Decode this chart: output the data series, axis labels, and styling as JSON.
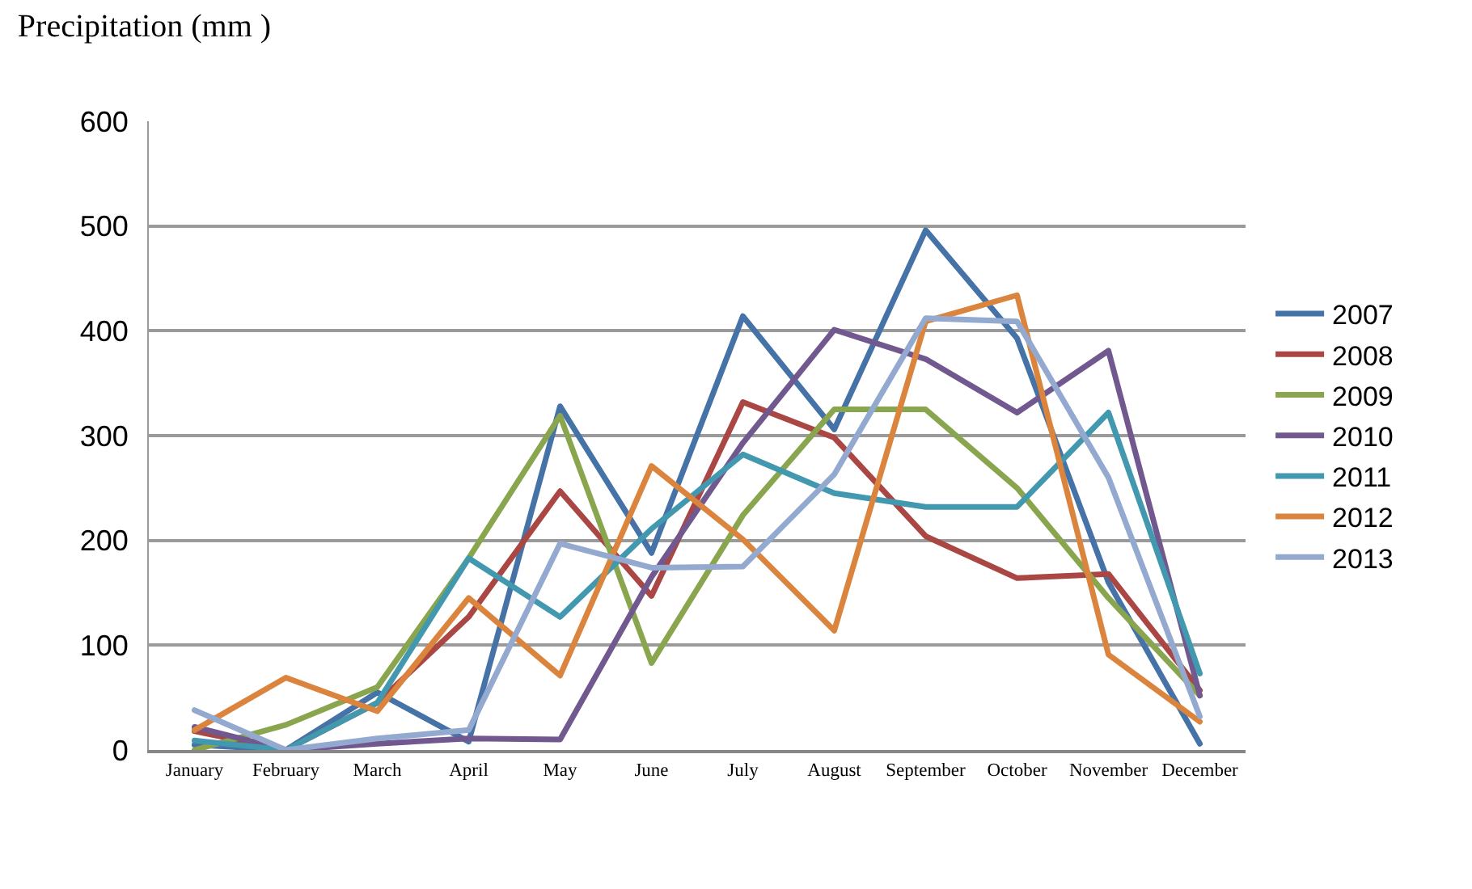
{
  "chart_data": {
    "type": "line",
    "title": "Precipitation (mm )",
    "categories": [
      "January",
      "February",
      "March",
      "April",
      "May",
      "June",
      "July",
      "August",
      "September",
      "October",
      "November",
      "December"
    ],
    "ylim": [
      0,
      600
    ],
    "yticks": [
      0,
      100,
      200,
      300,
      400,
      500,
      600
    ],
    "grid": "y",
    "legend": "right",
    "marker": "none",
    "line_style": "solid",
    "series": [
      {
        "name": "2007",
        "color": "#4572a7",
        "values": [
          5,
          0,
          55,
          8,
          328,
          188,
          414,
          306,
          496,
          393,
          160,
          6
        ]
      },
      {
        "name": "2008",
        "color": "#aa4643",
        "values": [
          18,
          0,
          45,
          127,
          247,
          147,
          332,
          298,
          204,
          164,
          168,
          57
        ]
      },
      {
        "name": "2009",
        "color": "#89a54e",
        "values": [
          0,
          24,
          60,
          183,
          319,
          83,
          224,
          325,
          325,
          250,
          145,
          52
        ]
      },
      {
        "name": "2010",
        "color": "#71588f",
        "values": [
          22,
          0,
          6,
          11,
          10,
          165,
          293,
          401,
          373,
          322,
          381,
          52
        ]
      },
      {
        "name": "2011",
        "color": "#4198af",
        "values": [
          9,
          0,
          45,
          183,
          127,
          211,
          282,
          245,
          232,
          232,
          322,
          73
        ]
      },
      {
        "name": "2012",
        "color": "#db843d",
        "values": [
          19,
          69,
          37,
          145,
          71,
          271,
          201,
          114,
          409,
          434,
          91,
          27
        ]
      },
      {
        "name": "2013",
        "color": "#93a9cf",
        "values": [
          38,
          0,
          11,
          19,
          197,
          174,
          175,
          263,
          412,
          409,
          260,
          32
        ]
      }
    ]
  }
}
